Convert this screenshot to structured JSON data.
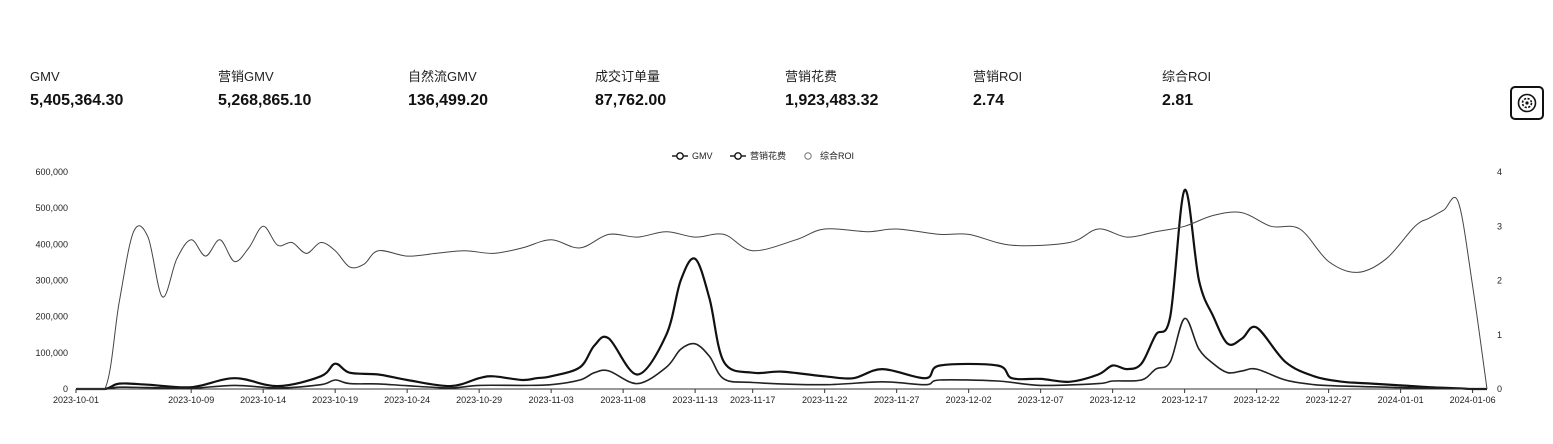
{
  "metrics": [
    {
      "label": "GMV",
      "value": "5,405,364.30"
    },
    {
      "label": "营销GMV",
      "value": "5,268,865.10"
    },
    {
      "label": "自然流GMV",
      "value": "136,499.20"
    },
    {
      "label": "成交订单量",
      "value": "87,762.00"
    },
    {
      "label": "营销花费",
      "value": "1,923,483.32"
    },
    {
      "label": "营销ROI",
      "value": "2.74"
    },
    {
      "label": "综合ROI",
      "value": "2.81"
    }
  ],
  "settings_icon": "settings-gear-icon",
  "chart_data": {
    "type": "line",
    "legend": {
      "position": "top-center",
      "entries": [
        "GMV",
        "营销花费",
        "综合ROI"
      ]
    },
    "x_tick_labels": [
      "2023-10-01",
      "2023-10-09",
      "2023-10-14",
      "2023-10-19",
      "2023-10-24",
      "2023-10-29",
      "2023-11-03",
      "2023-11-08",
      "2023-11-13",
      "2023-11-17",
      "2023-11-22",
      "2023-11-27",
      "2023-12-02",
      "2023-12-07",
      "2023-12-12",
      "2023-12-17",
      "2023-12-22",
      "2023-12-27",
      "2024-01-01",
      "2024-01-06"
    ],
    "x_range": [
      "2023-10-01",
      "2024-01-07"
    ],
    "y_left": {
      "range": [
        0,
        600000
      ],
      "ticks": [
        0,
        100000,
        200000,
        300000,
        400000,
        500000,
        600000
      ],
      "tick_labels": [
        "0",
        "100,000",
        "200,000",
        "300,000",
        "400,000",
        "500,000",
        "600,000"
      ]
    },
    "y_right": {
      "range": [
        0,
        4
      ],
      "ticks": [
        0,
        1,
        2,
        3,
        4
      ],
      "tick_labels": [
        "0",
        "1",
        "2",
        "3",
        "4"
      ]
    },
    "grid": false,
    "series": [
      {
        "name": "GMV",
        "axis": "left",
        "x": [
          "2023-10-01",
          "2023-10-03",
          "2023-10-04",
          "2023-10-06",
          "2023-10-09",
          "2023-10-12",
          "2023-10-15",
          "2023-10-18",
          "2023-10-19",
          "2023-10-20",
          "2023-10-22",
          "2023-10-24",
          "2023-10-27",
          "2023-10-29",
          "2023-10-30",
          "2023-11-01",
          "2023-11-02",
          "2023-11-03",
          "2023-11-05",
          "2023-11-06",
          "2023-11-07",
          "2023-11-09",
          "2023-11-11",
          "2023-11-12",
          "2023-11-13",
          "2023-11-14",
          "2023-11-15",
          "2023-11-17",
          "2023-11-19",
          "2023-11-22",
          "2023-11-24",
          "2023-11-26",
          "2023-11-29",
          "2023-11-30",
          "2023-12-04",
          "2023-12-05",
          "2023-12-07",
          "2023-12-09",
          "2023-12-11",
          "2023-12-12",
          "2023-12-13",
          "2023-12-14",
          "2023-12-15",
          "2023-12-16",
          "2023-12-17",
          "2023-12-18",
          "2023-12-19",
          "2023-12-20",
          "2023-12-21",
          "2023-12-22",
          "2023-12-24",
          "2023-12-26",
          "2023-12-28",
          "2023-12-30",
          "2024-01-01",
          "2024-01-03",
          "2024-01-05",
          "2024-01-06",
          "2024-01-07"
        ],
        "values": [
          0,
          0,
          15000,
          12000,
          5000,
          30000,
          8000,
          35000,
          70000,
          45000,
          40000,
          25000,
          8000,
          30000,
          35000,
          25000,
          30000,
          35000,
          60000,
          120000,
          140000,
          40000,
          150000,
          300000,
          360000,
          250000,
          75000,
          45000,
          48000,
          35000,
          30000,
          55000,
          30000,
          65000,
          65000,
          30000,
          28000,
          20000,
          40000,
          65000,
          55000,
          70000,
          150000,
          200000,
          550000,
          300000,
          200000,
          125000,
          140000,
          170000,
          75000,
          35000,
          20000,
          15000,
          10000,
          5000,
          2000,
          0,
          0
        ]
      },
      {
        "name": "营销花费",
        "axis": "left",
        "x": [
          "2023-10-01",
          "2023-10-03",
          "2023-10-04",
          "2023-10-06",
          "2023-10-09",
          "2023-10-12",
          "2023-10-15",
          "2023-10-18",
          "2023-10-19",
          "2023-10-20",
          "2023-10-22",
          "2023-10-24",
          "2023-10-27",
          "2023-10-29",
          "2023-11-01",
          "2023-11-03",
          "2023-11-05",
          "2023-11-06",
          "2023-11-07",
          "2023-11-09",
          "2023-11-11",
          "2023-11-12",
          "2023-11-13",
          "2023-11-14",
          "2023-11-15",
          "2023-11-17",
          "2023-11-22",
          "2023-11-26",
          "2023-11-29",
          "2023-11-30",
          "2023-12-04",
          "2023-12-07",
          "2023-12-11",
          "2023-12-12",
          "2023-12-14",
          "2023-12-15",
          "2023-12-16",
          "2023-12-17",
          "2023-12-18",
          "2023-12-19",
          "2023-12-20",
          "2023-12-21",
          "2023-12-22",
          "2023-12-24",
          "2023-12-26",
          "2023-12-28",
          "2023-12-30",
          "2024-01-01",
          "2024-01-03",
          "2024-01-05",
          "2024-01-06",
          "2024-01-07"
        ],
        "values": [
          0,
          0,
          5000,
          4000,
          2000,
          10000,
          3000,
          12000,
          25000,
          15000,
          14000,
          9000,
          3000,
          10000,
          10000,
          12000,
          25000,
          45000,
          50000,
          15000,
          60000,
          110000,
          125000,
          90000,
          28000,
          18000,
          12000,
          20000,
          12000,
          25000,
          22000,
          10000,
          15000,
          22000,
          25000,
          55000,
          75000,
          195000,
          110000,
          70000,
          45000,
          50000,
          55000,
          25000,
          12000,
          8000,
          6000,
          4000,
          2000,
          1000,
          0,
          0
        ]
      },
      {
        "name": "综合ROI",
        "axis": "right",
        "x": [
          "2023-10-01",
          "2023-10-03",
          "2023-10-04",
          "2023-10-05",
          "2023-10-06",
          "2023-10-07",
          "2023-10-08",
          "2023-10-09",
          "2023-10-10",
          "2023-10-11",
          "2023-10-12",
          "2023-10-13",
          "2023-10-14",
          "2023-10-15",
          "2023-10-16",
          "2023-10-17",
          "2023-10-18",
          "2023-10-19",
          "2023-10-20",
          "2023-10-21",
          "2023-10-22",
          "2023-10-24",
          "2023-10-26",
          "2023-10-28",
          "2023-10-30",
          "2023-11-01",
          "2023-11-03",
          "2023-11-05",
          "2023-11-07",
          "2023-11-09",
          "2023-11-11",
          "2023-11-13",
          "2023-11-15",
          "2023-11-17",
          "2023-11-20",
          "2023-11-22",
          "2023-11-25",
          "2023-11-27",
          "2023-11-30",
          "2023-12-02",
          "2023-12-05",
          "2023-12-09",
          "2023-12-11",
          "2023-12-13",
          "2023-12-15",
          "2023-12-17",
          "2023-12-19",
          "2023-12-21",
          "2023-12-23",
          "2023-12-25",
          "2023-12-27",
          "2023-12-29",
          "2023-12-31",
          "2024-01-02",
          "2024-01-03",
          "2024-01-04",
          "2024-01-05",
          "2024-01-06",
          "2024-01-07"
        ],
        "values": [
          0,
          0,
          1.6,
          2.9,
          2.8,
          1.7,
          2.4,
          2.75,
          2.45,
          2.75,
          2.35,
          2.6,
          3.0,
          2.65,
          2.7,
          2.5,
          2.7,
          2.55,
          2.25,
          2.3,
          2.55,
          2.45,
          2.5,
          2.55,
          2.5,
          2.6,
          2.75,
          2.6,
          2.85,
          2.8,
          2.9,
          2.8,
          2.85,
          2.55,
          2.75,
          2.95,
          2.9,
          2.95,
          2.85,
          2.85,
          2.65,
          2.7,
          2.95,
          2.8,
          2.9,
          3.0,
          3.2,
          3.25,
          3.0,
          2.95,
          2.35,
          2.15,
          2.4,
          3.0,
          3.15,
          3.3,
          3.45,
          1.9,
          0
        ]
      }
    ]
  }
}
